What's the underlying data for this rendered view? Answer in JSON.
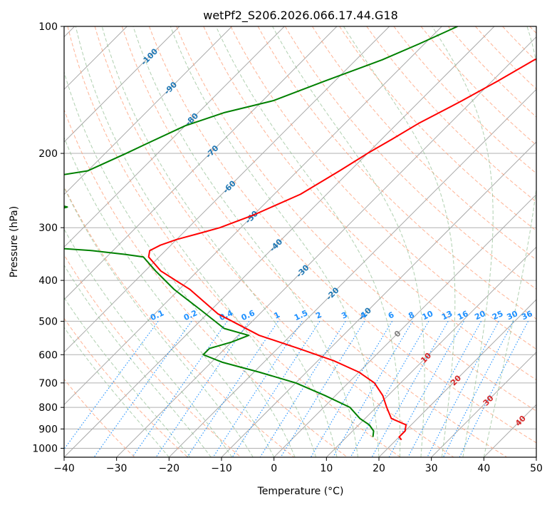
{
  "chart_data": {
    "type": "line",
    "title": "wetPf2_S206.2026.066.17.44.G18",
    "xlabel": "Temperature (°C)",
    "ylabel": "Pressure (hPa)",
    "xlim": [
      -40,
      50
    ],
    "ylim": [
      1050,
      100
    ],
    "y_scale": "log",
    "x_ticks": [
      -40,
      -30,
      -20,
      -10,
      0,
      10,
      20,
      30,
      40,
      50
    ],
    "y_ticks": [
      100,
      200,
      300,
      400,
      500,
      600,
      700,
      800,
      900,
      1000
    ],
    "grid": true,
    "series": [
      {
        "id": "temperature",
        "color": "#ff0000",
        "points": [
          [
            100,
            -20
          ],
          [
            110,
            -22
          ],
          [
            120,
            -26
          ],
          [
            135,
            -29
          ],
          [
            150,
            -32
          ],
          [
            170,
            -36
          ],
          [
            185,
            -38
          ],
          [
            200,
            -40
          ],
          [
            220,
            -42
          ],
          [
            250,
            -45
          ],
          [
            280,
            -50
          ],
          [
            300,
            -54
          ],
          [
            310,
            -57
          ],
          [
            320,
            -60
          ],
          [
            330,
            -62
          ],
          [
            340,
            -63
          ],
          [
            352,
            -62
          ],
          [
            380,
            -57
          ],
          [
            420,
            -48
          ],
          [
            480,
            -38
          ],
          [
            540,
            -26
          ],
          [
            580,
            -16
          ],
          [
            620,
            -7
          ],
          [
            660,
            0
          ],
          [
            700,
            5
          ],
          [
            750,
            9
          ],
          [
            800,
            12
          ],
          [
            850,
            15
          ],
          [
            880,
            19
          ],
          [
            910,
            20
          ],
          [
            940,
            20
          ],
          [
            955,
            21
          ]
        ]
      },
      {
        "id": "dewpoint",
        "color": "#008000",
        "points": [
          [
            100,
            -47
          ],
          [
            110,
            -51
          ],
          [
            120,
            -55
          ],
          [
            135,
            -62
          ],
          [
            150,
            -68
          ],
          [
            160,
            -75
          ],
          [
            172,
            -80
          ],
          [
            190,
            -84
          ],
          [
            200,
            -86
          ],
          [
            220,
            -90
          ],
          [
            226,
            -95
          ],
          [
            229,
            -102
          ],
          [
            230,
            -113
          ],
          [
            240,
            -127
          ],
          [
            246,
            -120
          ],
          [
            252,
            -103
          ],
          [
            260,
            -92
          ],
          [
            268,
            -87
          ],
          [
            277,
            -90
          ],
          [
            286,
            -103
          ],
          [
            292,
            -117
          ],
          [
            300,
            -125
          ],
          [
            305,
            -130
          ],
          [
            310,
            -132
          ],
          [
            315,
            -127
          ],
          [
            318,
            -117
          ],
          [
            325,
            -100
          ],
          [
            333,
            -85
          ],
          [
            340,
            -74
          ],
          [
            347,
            -67
          ],
          [
            352,
            -63
          ],
          [
            380,
            -58
          ],
          [
            420,
            -51
          ],
          [
            470,
            -42
          ],
          [
            520,
            -34
          ],
          [
            540,
            -28
          ],
          [
            560,
            -30
          ],
          [
            580,
            -33
          ],
          [
            600,
            -33
          ],
          [
            625,
            -28
          ],
          [
            660,
            -19
          ],
          [
            700,
            -10
          ],
          [
            750,
            -2
          ],
          [
            800,
            5
          ],
          [
            850,
            9
          ],
          [
            880,
            12
          ],
          [
            910,
            14
          ],
          [
            940,
            15
          ]
        ]
      }
    ],
    "isotherm_labels": [
      {
        "value": "-100",
        "color": "#1f77b4"
      },
      {
        "value": "-90",
        "color": "#1f77b4"
      },
      {
        "value": "-80",
        "color": "#1f77b4"
      },
      {
        "value": "-70",
        "color": "#1f77b4"
      },
      {
        "value": "-60",
        "color": "#1f77b4"
      },
      {
        "value": "-50",
        "color": "#1f77b4"
      },
      {
        "value": "-40",
        "color": "#1f77b4"
      },
      {
        "value": "-30",
        "color": "#1f77b4"
      },
      {
        "value": "-20",
        "color": "#1f77b4"
      },
      {
        "value": "-10",
        "color": "#1f77b4"
      },
      {
        "value": "0",
        "color": "#808080"
      },
      {
        "value": "10",
        "color": "#d62728"
      },
      {
        "value": "20",
        "color": "#d62728"
      },
      {
        "value": "30",
        "color": "#d62728"
      },
      {
        "value": "40",
        "color": "#d62728"
      }
    ],
    "mixing_ratio_labels": [
      "0.1",
      "0.2",
      "0.4",
      "0.6",
      "1",
      "1.5",
      "2",
      "3",
      "4",
      "6",
      "8",
      "10",
      "13",
      "16",
      "20",
      "25",
      "30",
      "36"
    ],
    "mixing_ratio_values": [
      0.1,
      0.2,
      0.4,
      0.6,
      1,
      1.5,
      2,
      3,
      4,
      6,
      8,
      10,
      13,
      16,
      20,
      25,
      30,
      36
    ],
    "mixing_ratio_label_pressure": 500,
    "background_lines": {
      "skewed_isotherms_color": "#a9a9a9",
      "dry_adiabats_color": "#ffa07a",
      "moist_adiabats_color": "#8fbc8f",
      "mixing_ratio_color": "#1e90ff"
    }
  }
}
